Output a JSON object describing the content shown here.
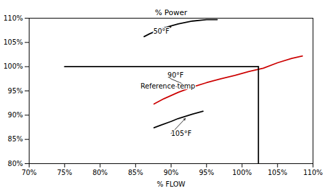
{
  "chart_data": {
    "type": "line",
    "title": "% Power",
    "xlabel": "% FLOW",
    "xlim": [
      0.7,
      1.1
    ],
    "ylim": [
      0.8,
      1.1
    ],
    "xticks": [
      {
        "value": 0.7,
        "label": "70%"
      },
      {
        "value": 0.75,
        "label": "75%"
      },
      {
        "value": 0.8,
        "label": "80%"
      },
      {
        "value": 0.85,
        "label": "85%"
      },
      {
        "value": 0.9,
        "label": "90%"
      },
      {
        "value": 0.95,
        "label": "95%"
      },
      {
        "value": 1.0,
        "label": "100%"
      },
      {
        "value": 1.05,
        "label": "105%"
      },
      {
        "value": 1.1,
        "label": "110%"
      }
    ],
    "yticks": [
      {
        "value": 0.8,
        "label": "80%"
      },
      {
        "value": 0.85,
        "label": "85%"
      },
      {
        "value": 0.9,
        "label": "90%"
      },
      {
        "value": 0.95,
        "label": "95%"
      },
      {
        "value": 1.0,
        "label": "100%"
      },
      {
        "value": 1.05,
        "label": "105%"
      },
      {
        "value": 1.1,
        "label": "110%"
      }
    ],
    "grid": false,
    "series": [
      {
        "color": "#000000",
        "x": [
          0.862,
          0.87,
          0.88,
          0.89,
          0.91,
          0.93,
          0.95,
          0.965
        ],
        "values": [
          1.062,
          1.068,
          1.074,
          1.08,
          1.088,
          1.094,
          1.097,
          1.097
        ]
      },
      {
        "color": "#cc0000",
        "x": [
          0.876,
          0.89,
          0.91,
          0.93,
          0.95,
          0.97,
          0.99,
          1.01,
          1.03,
          1.05,
          1.07,
          1.085
        ],
        "values": [
          0.923,
          0.934,
          0.947,
          0.958,
          0.967,
          0.975,
          0.982,
          0.99,
          0.997,
          1.008,
          1.017,
          1.022
        ]
      },
      {
        "color": "#000000",
        "x": [
          0.876,
          0.885,
          0.9,
          0.91,
          0.93,
          0.945
        ],
        "values": [
          0.874,
          0.879,
          0.887,
          0.893,
          0.902,
          0.908
        ]
      },
      {
        "color": "#000000",
        "x": [
          0.75,
          1.023
        ],
        "values": [
          1.0,
          1.0
        ]
      },
      {
        "color": "#000000",
        "x": [
          1.023,
          1.023
        ],
        "values": [
          0.8,
          1.0
        ]
      }
    ],
    "annotations": [
      {
        "text": "50°F",
        "x": 0.875,
        "y": 1.072,
        "arrow_x": 0.9,
        "arrow_y": 1.082
      },
      {
        "text": "90°F",
        "x": 0.895,
        "y": 0.978,
        "arrow_x": 0.93,
        "arrow_y": 0.956
      },
      {
        "text": "Reference temp",
        "x": 0.857,
        "y": 0.965,
        "arrow_x": 0.93,
        "arrow_y": 0.956
      },
      {
        "text": "105°F",
        "x": 0.9,
        "y": 0.862,
        "arrow_x": 0.92,
        "arrow_y": 0.893
      }
    ]
  }
}
